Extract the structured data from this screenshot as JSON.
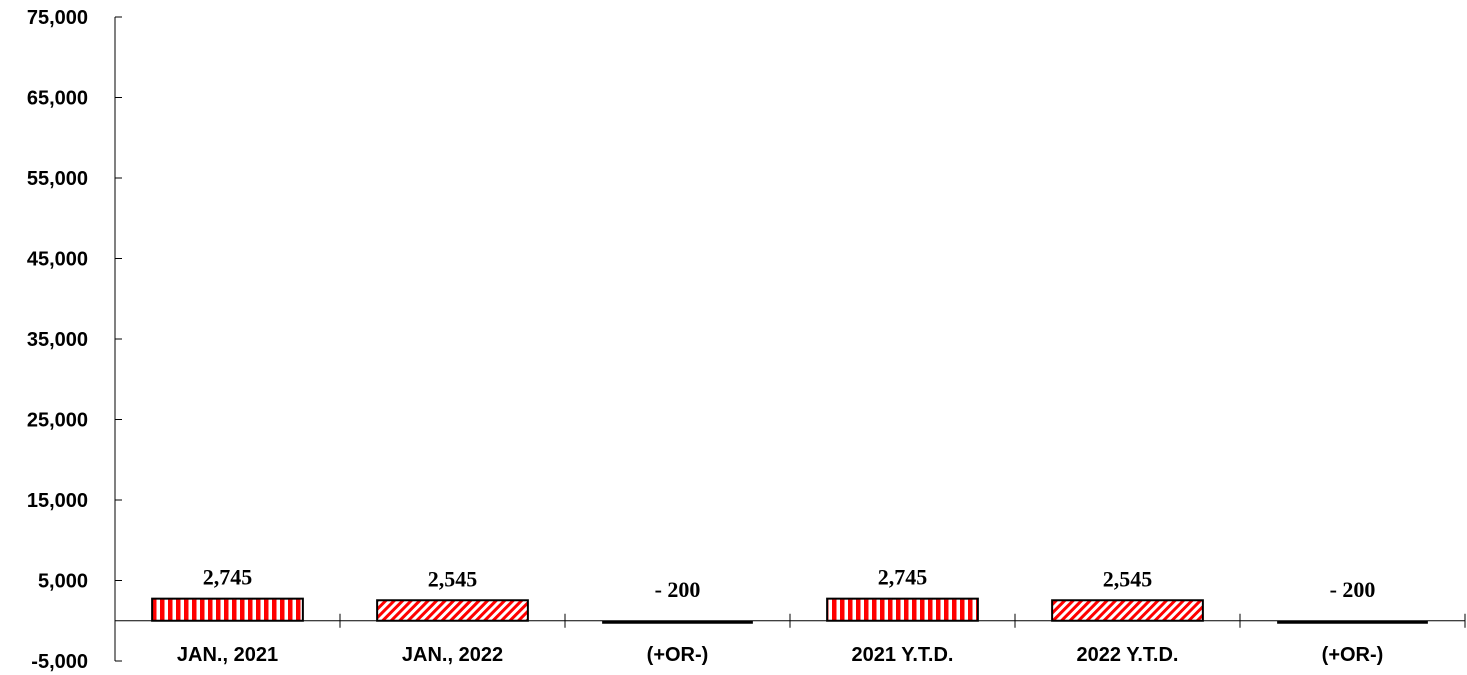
{
  "chart_data": {
    "type": "bar",
    "title": "",
    "xlabel": "",
    "ylabel": "",
    "categories": [
      "JAN., 2021",
      "JAN., 2022",
      "(+OR-)",
      "2021 Y.T.D.",
      "2022 Y.T.D.",
      "(+OR-)"
    ],
    "values": [
      2745,
      2545,
      -200,
      2745,
      2545,
      -200
    ],
    "data_labels": [
      "2,745",
      "2,545",
      "- 200",
      "2,745",
      "2,545",
      "- 200"
    ],
    "fill_patterns": [
      "red-vertical-stripes",
      "red-diagonal-stripes",
      "solid-black",
      "red-vertical-stripes",
      "red-diagonal-stripes",
      "solid-black"
    ],
    "ylim": [
      -5000,
      75000
    ],
    "yticks": [
      75000,
      65000,
      55000,
      45000,
      35000,
      25000,
      15000,
      5000,
      -5000
    ],
    "ytick_labels": [
      "75,000",
      "65,000",
      "55,000",
      "45,000",
      "35,000",
      "25,000",
      "15,000",
      "5,000",
      "-5,000"
    ],
    "grid": false,
    "legend": "none",
    "colors": {
      "bar_red": "#ff0000",
      "bar_white": "#ffffff",
      "outline": "#000000",
      "axis": "#000000"
    }
  }
}
